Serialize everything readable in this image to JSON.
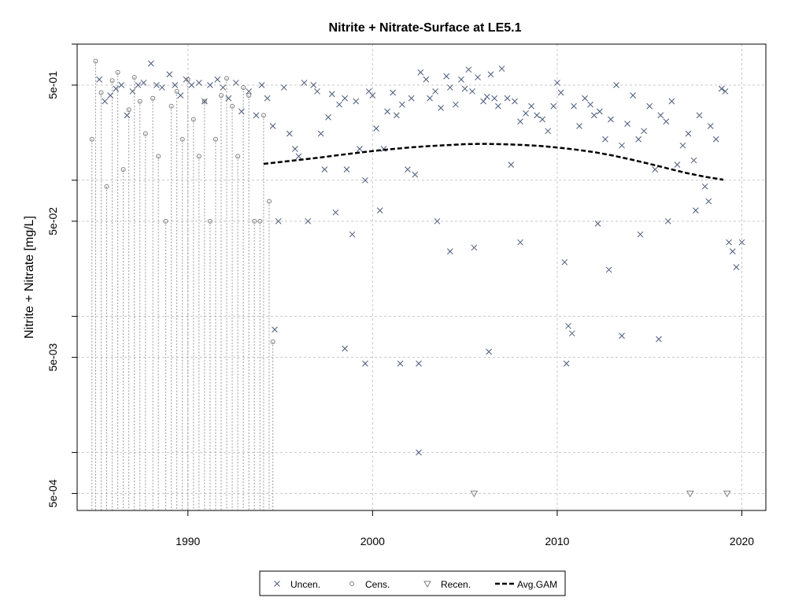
{
  "chart_data": {
    "type": "scatter",
    "title": "Nitrite + Nitrate-Surface at LE5.1",
    "xlabel": "",
    "ylabel": "Nitrite + Nitrate [mg/L]",
    "y_scale": "log10",
    "xlim": [
      1984.0,
      2021.3
    ],
    "ylim": [
      0.000375,
      1.0
    ],
    "x_ticks": [
      1990,
      2000,
      2010,
      2020
    ],
    "x_tick_labels": [
      "1990",
      "2000",
      "2010",
      "2020"
    ],
    "y_ticks": [
      0.0005,
      0.005,
      0.05,
      0.5
    ],
    "y_tick_labels": [
      "5e-04",
      "5e-03",
      "5e-02",
      "5e-01"
    ],
    "y_minor_ticks": [
      0.001,
      0.01,
      0.1,
      1.0
    ],
    "grid": true,
    "legend_position": "bottom-center",
    "legend": [
      {
        "label": "Uncen.",
        "symbol": "x"
      },
      {
        "label": "Cens.",
        "symbol": "circle"
      },
      {
        "label": "Recen.",
        "symbol": "triangle-down"
      },
      {
        "label": "Avg.GAM",
        "symbol": "dashed-line"
      }
    ],
    "colors": {
      "uncensored": "#4a5a7a",
      "censored": "#808080",
      "recensored": "#808080",
      "gam": "#000000",
      "grid": "#c8c8c8"
    },
    "series": [
      {
        "name": "Uncen.",
        "kind": "x",
        "points": [
          [
            1985.2,
            0.55
          ],
          [
            1985.5,
            0.38
          ],
          [
            1985.8,
            0.42
          ],
          [
            1986.1,
            0.47
          ],
          [
            1986.4,
            0.5
          ],
          [
            1986.7,
            0.3
          ],
          [
            1987.0,
            0.45
          ],
          [
            1987.3,
            0.5
          ],
          [
            1987.6,
            0.52
          ],
          [
            1988.0,
            0.72
          ],
          [
            1988.3,
            0.5
          ],
          [
            1988.6,
            0.48
          ],
          [
            1989.0,
            0.6
          ],
          [
            1989.3,
            0.5
          ],
          [
            1989.6,
            0.42
          ],
          [
            1989.9,
            0.55
          ],
          [
            1990.2,
            0.5
          ],
          [
            1990.6,
            0.52
          ],
          [
            1990.9,
            0.38
          ],
          [
            1991.2,
            0.5
          ],
          [
            1991.6,
            0.55
          ],
          [
            1991.9,
            0.48
          ],
          [
            1992.2,
            0.4
          ],
          [
            1992.6,
            0.52
          ],
          [
            1992.9,
            0.32
          ],
          [
            1993.3,
            0.45
          ],
          [
            1993.7,
            0.3
          ],
          [
            1994.0,
            0.5
          ],
          [
            1994.3,
            0.4
          ],
          [
            1994.6,
            0.25
          ],
          [
            1994.9,
            0.05
          ],
          [
            1994.7,
            0.008
          ],
          [
            1995.2,
            0.48
          ],
          [
            1995.5,
            0.22
          ],
          [
            1995.8,
            0.17
          ],
          [
            1996.0,
            0.15
          ],
          [
            1996.3,
            0.52
          ],
          [
            1996.5,
            0.05
          ],
          [
            1996.8,
            0.5
          ],
          [
            1997.0,
            0.45
          ],
          [
            1997.2,
            0.22
          ],
          [
            1997.4,
            0.12
          ],
          [
            1997.6,
            0.29
          ],
          [
            1997.8,
            0.43
          ],
          [
            1998.0,
            0.058
          ],
          [
            1998.2,
            0.36
          ],
          [
            1998.5,
            0.4
          ],
          [
            1998.6,
            0.12
          ],
          [
            1998.9,
            0.04
          ],
          [
            1999.1,
            0.38
          ],
          [
            1999.3,
            0.17
          ],
          [
            1999.6,
            0.1
          ],
          [
            1999.8,
            0.45
          ],
          [
            2000.0,
            0.42
          ],
          [
            2000.2,
            0.24
          ],
          [
            2000.4,
            0.06
          ],
          [
            2000.6,
            0.17
          ],
          [
            2000.8,
            0.32
          ],
          [
            2001.1,
            0.44
          ],
          [
            2001.3,
            0.3
          ],
          [
            2001.6,
            0.36
          ],
          [
            2001.9,
            0.12
          ],
          [
            2002.1,
            0.4
          ],
          [
            2002.3,
            0.11
          ],
          [
            2002.6,
            0.62
          ],
          [
            2002.9,
            0.55
          ],
          [
            2003.1,
            0.4
          ],
          [
            2003.4,
            0.45
          ],
          [
            2003.7,
            0.34
          ],
          [
            2004.0,
            0.58
          ],
          [
            2004.2,
            0.48
          ],
          [
            2004.5,
            0.36
          ],
          [
            2004.8,
            0.55
          ],
          [
            2005.0,
            0.47
          ],
          [
            2005.2,
            0.65
          ],
          [
            2005.4,
            0.45
          ],
          [
            2005.7,
            0.57
          ],
          [
            2006.0,
            0.38
          ],
          [
            2006.2,
            0.41
          ],
          [
            2006.4,
            0.6
          ],
          [
            2006.6,
            0.4
          ],
          [
            2006.8,
            0.35
          ],
          [
            2007.0,
            0.66
          ],
          [
            2007.3,
            0.4
          ],
          [
            2007.5,
            0.13
          ],
          [
            2007.7,
            0.38
          ],
          [
            2008.0,
            0.27
          ],
          [
            2008.3,
            0.31
          ],
          [
            2008.6,
            0.35
          ],
          [
            2008.9,
            0.3
          ],
          [
            2009.2,
            0.28
          ],
          [
            2009.5,
            0.23
          ],
          [
            2009.8,
            0.35
          ],
          [
            2010.0,
            0.52
          ],
          [
            2010.2,
            0.44
          ],
          [
            2010.4,
            0.025
          ],
          [
            2010.6,
            0.0085
          ],
          [
            2010.9,
            0.35
          ],
          [
            2011.2,
            0.25
          ],
          [
            2011.5,
            0.4
          ],
          [
            2011.8,
            0.36
          ],
          [
            2012.0,
            0.3
          ],
          [
            2012.3,
            0.32
          ],
          [
            2012.6,
            0.2
          ],
          [
            2012.9,
            0.28
          ],
          [
            2013.2,
            0.5
          ],
          [
            2013.5,
            0.18
          ],
          [
            2013.8,
            0.26
          ],
          [
            2014.1,
            0.42
          ],
          [
            2014.4,
            0.2
          ],
          [
            2014.7,
            0.23
          ],
          [
            2015.0,
            0.35
          ],
          [
            2015.3,
            0.12
          ],
          [
            2015.6,
            0.3
          ],
          [
            2015.9,
            0.27
          ],
          [
            2016.2,
            0.38
          ],
          [
            2016.5,
            0.13
          ],
          [
            2016.8,
            0.18
          ],
          [
            2017.1,
            0.22
          ],
          [
            2017.4,
            0.14
          ],
          [
            2017.7,
            0.3
          ],
          [
            2018.0,
            0.09
          ],
          [
            2018.3,
            0.25
          ],
          [
            2018.6,
            0.2
          ],
          [
            2018.9,
            0.47
          ],
          [
            2019.1,
            0.45
          ],
          [
            2019.3,
            0.035
          ],
          [
            2019.5,
            0.03
          ],
          [
            2019.7,
            0.023
          ],
          [
            2020.0,
            0.035
          ],
          [
            1998.5,
            0.0058
          ],
          [
            1999.6,
            0.0045
          ],
          [
            2001.5,
            0.0045
          ],
          [
            2002.5,
            0.0045
          ],
          [
            2002.5,
            0.001
          ],
          [
            2006.3,
            0.0055
          ],
          [
            2010.5,
            0.0045
          ],
          [
            2010.8,
            0.0075
          ],
          [
            2013.5,
            0.0072
          ],
          [
            2015.5,
            0.0068
          ],
          [
            2004.2,
            0.03
          ],
          [
            2008.0,
            0.035
          ],
          [
            2012.2,
            0.048
          ],
          [
            2012.8,
            0.022
          ],
          [
            2014.5,
            0.04
          ],
          [
            2016.0,
            0.05
          ],
          [
            2017.5,
            0.06
          ],
          [
            2018.2,
            0.07
          ],
          [
            2003.5,
            0.05
          ],
          [
            2005.5,
            0.032
          ]
        ]
      },
      {
        "name": "Cens.",
        "kind": "circle",
        "censored": true,
        "points": [
          [
            1984.8,
            0.2
          ],
          [
            1985.0,
            0.75
          ],
          [
            1985.3,
            0.44
          ],
          [
            1985.6,
            0.09
          ],
          [
            1985.9,
            0.54
          ],
          [
            1986.2,
            0.62
          ],
          [
            1986.5,
            0.12
          ],
          [
            1986.8,
            0.33
          ],
          [
            1987.1,
            0.57
          ],
          [
            1987.4,
            0.38
          ],
          [
            1987.7,
            0.22
          ],
          [
            1988.1,
            0.4
          ],
          [
            1988.4,
            0.15
          ],
          [
            1988.8,
            0.05
          ],
          [
            1989.1,
            0.35
          ],
          [
            1989.4,
            0.45
          ],
          [
            1989.7,
            0.2
          ],
          [
            1990.0,
            0.55
          ],
          [
            1990.3,
            0.28
          ],
          [
            1990.6,
            0.15
          ],
          [
            1990.9,
            0.38
          ],
          [
            1991.2,
            0.05
          ],
          [
            1991.5,
            0.2
          ],
          [
            1991.8,
            0.42
          ],
          [
            1992.1,
            0.56
          ],
          [
            1992.4,
            0.35
          ],
          [
            1992.7,
            0.15
          ],
          [
            1993.0,
            0.48
          ],
          [
            1993.3,
            0.42
          ],
          [
            1993.6,
            0.05
          ],
          [
            1993.9,
            0.05
          ],
          [
            1994.1,
            0.3
          ],
          [
            1994.4,
            0.07
          ],
          [
            1994.6,
            0.0065
          ]
        ]
      },
      {
        "name": "Recen.",
        "kind": "triangle-down",
        "points": [
          [
            2005.5,
            0.0005
          ],
          [
            2017.2,
            0.0005
          ],
          [
            2019.2,
            0.0005
          ]
        ]
      },
      {
        "name": "Avg.GAM",
        "kind": "dashed-line",
        "points": [
          [
            1994.1,
            0.132
          ],
          [
            1995.0,
            0.136
          ],
          [
            1996.0,
            0.141
          ],
          [
            1997.0,
            0.146
          ],
          [
            1998.0,
            0.152
          ],
          [
            1999.0,
            0.158
          ],
          [
            2000.0,
            0.164
          ],
          [
            2001.0,
            0.169
          ],
          [
            2002.0,
            0.174
          ],
          [
            2003.0,
            0.178
          ],
          [
            2004.0,
            0.181
          ],
          [
            2005.0,
            0.184
          ],
          [
            2006.0,
            0.185
          ],
          [
            2007.0,
            0.184
          ],
          [
            2008.0,
            0.182
          ],
          [
            2009.0,
            0.179
          ],
          [
            2010.0,
            0.174
          ],
          [
            2011.0,
            0.168
          ],
          [
            2012.0,
            0.161
          ],
          [
            2013.0,
            0.152
          ],
          [
            2014.0,
            0.142
          ],
          [
            2015.0,
            0.132
          ],
          [
            2016.0,
            0.122
          ],
          [
            2017.0,
            0.113
          ],
          [
            2018.0,
            0.106
          ],
          [
            2019.0,
            0.101
          ]
        ]
      }
    ]
  }
}
